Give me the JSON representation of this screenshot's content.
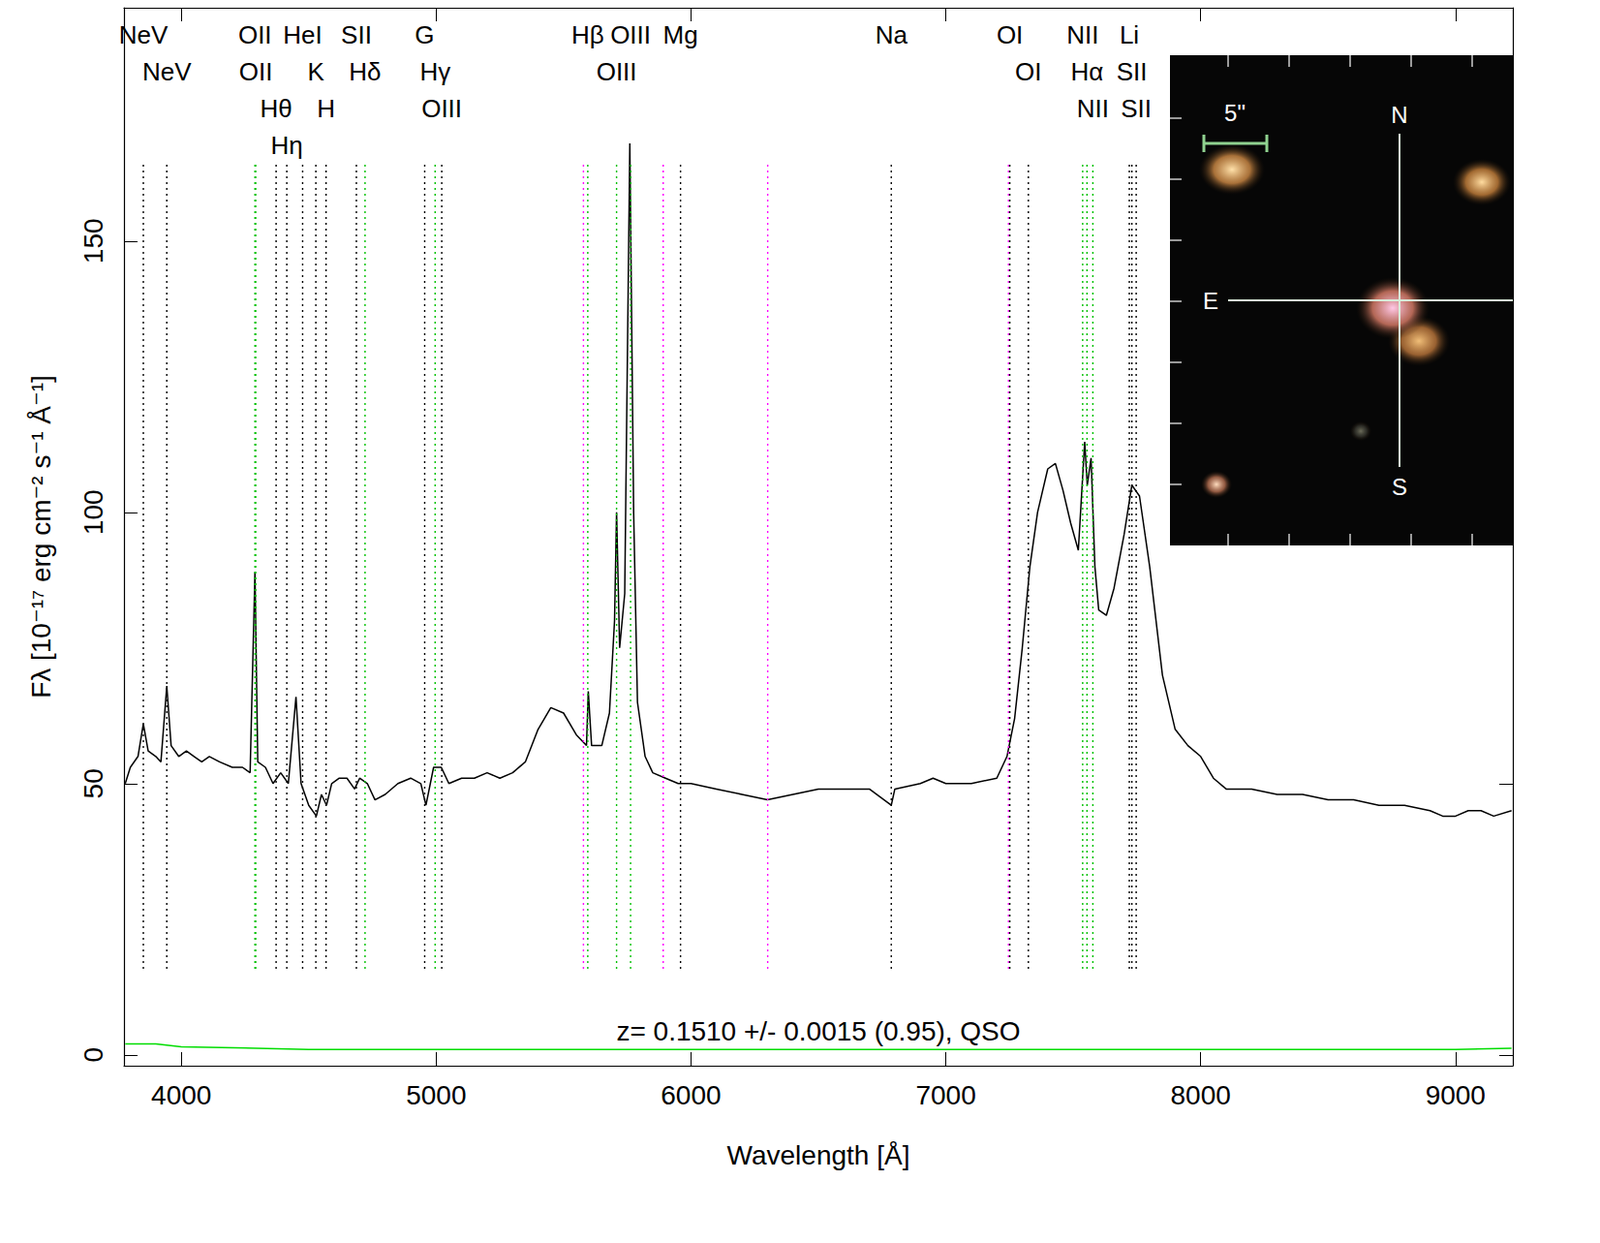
{
  "chart_data": {
    "type": "line",
    "x_label": "Wavelength [Å]",
    "y_label": "Fλ [10⁻¹⁷ erg cm⁻² s⁻¹ Å⁻¹]",
    "xlim": [
      3775,
      9225
    ],
    "xticks": [
      4000,
      5000,
      6000,
      7000,
      8000,
      9000
    ],
    "ylim": [
      -2,
      193
    ],
    "yticks": [
      0,
      50,
      100,
      150
    ],
    "grid": false,
    "series": [
      {
        "color": "#000000",
        "x": [
          3780,
          3800,
          3830,
          3851,
          3870,
          3900,
          3920,
          3943,
          3960,
          3990,
          4020,
          4050,
          4080,
          4110,
          4150,
          4200,
          4240,
          4270,
          4289,
          4300,
          4330,
          4360,
          4390,
          4420,
          4450,
          4470,
          4500,
          4530,
          4550,
          4570,
          4590,
          4620,
          4650,
          4680,
          4700,
          4730,
          4760,
          4800,
          4850,
          4900,
          4940,
          4960,
          4990,
          5020,
          5050,
          5100,
          5150,
          5200,
          5250,
          5300,
          5350,
          5400,
          5450,
          5500,
          5550,
          5590,
          5597,
          5610,
          5650,
          5680,
          5700,
          5708,
          5720,
          5740,
          5760,
          5775,
          5790,
          5820,
          5850,
          5900,
          5950,
          6000,
          6100,
          6200,
          6300,
          6400,
          6500,
          6600,
          6700,
          6786,
          6800,
          6900,
          6950,
          7000,
          7100,
          7200,
          7240,
          7270,
          7300,
          7330,
          7360,
          7400,
          7430,
          7460,
          7490,
          7520,
          7545,
          7555,
          7570,
          7585,
          7600,
          7630,
          7660,
          7700,
          7730,
          7760,
          7800,
          7850,
          7900,
          7950,
          8000,
          8050,
          8100,
          8200,
          8300,
          8400,
          8500,
          8600,
          8700,
          8800,
          8900,
          8950,
          9000,
          9050,
          9100,
          9150,
          9220
        ],
        "values": [
          50,
          53,
          55,
          61,
          56,
          55,
          54,
          68,
          57,
          55,
          56,
          55,
          54,
          55,
          54,
          53,
          53,
          52,
          89,
          54,
          53,
          50,
          52,
          50,
          66,
          50,
          46,
          44,
          48,
          46,
          50,
          51,
          51,
          49,
          51,
          50,
          47,
          48,
          50,
          51,
          50,
          46,
          53,
          53,
          50,
          51,
          51,
          52,
          51,
          52,
          54,
          60,
          64,
          63,
          59,
          57,
          67,
          57,
          57,
          63,
          80,
          100,
          75,
          85,
          168,
          100,
          65,
          55,
          52,
          51,
          50,
          50,
          49,
          48,
          47,
          48,
          49,
          49,
          49,
          46,
          49,
          50,
          51,
          50,
          50,
          51,
          55,
          62,
          75,
          90,
          100,
          108,
          109,
          104,
          98,
          93,
          113,
          105,
          110,
          90,
          82,
          81,
          86,
          96,
          105,
          103,
          90,
          70,
          60,
          57,
          55,
          51,
          49,
          49,
          48,
          48,
          47,
          47,
          46,
          46,
          45,
          44,
          44,
          45,
          45,
          44,
          45
        ]
      },
      {
        "color": "#00dd00",
        "x": [
          3780,
          3900,
          4000,
          4500,
          5000,
          6000,
          7000,
          8000,
          9000,
          9220
        ],
        "values": [
          2,
          2,
          1.5,
          1,
          1,
          1,
          1,
          1,
          1,
          1.2
        ]
      }
    ],
    "lines": [
      {
        "label": "NeV",
        "x": 3851,
        "color": "#000000"
      },
      {
        "label": "NeV",
        "x": 3943,
        "color": "#000000"
      },
      {
        "label": "OII",
        "x": 4289,
        "color": "#00c000"
      },
      {
        "label": "OII",
        "x": 4292,
        "color": "#00c000"
      },
      {
        "label": "Hθ",
        "x": 4372,
        "color": "#000000"
      },
      {
        "label": "Hη",
        "x": 4414,
        "color": "#000000"
      },
      {
        "label": "HeI",
        "x": 4476,
        "color": "#000000"
      },
      {
        "label": "K",
        "x": 4528,
        "color": "#000000"
      },
      {
        "label": "H",
        "x": 4568,
        "color": "#000000"
      },
      {
        "label": "SII",
        "x": 4687,
        "color": "#000000"
      },
      {
        "label": "Hδ",
        "x": 4721,
        "color": "#00c000"
      },
      {
        "label": "G",
        "x": 4955,
        "color": "#000000"
      },
      {
        "label": "Hγ",
        "x": 4996,
        "color": "#00c000"
      },
      {
        "label": "OIII",
        "x": 5022,
        "color": "#000000"
      },
      {
        "label": "Hβ",
        "x": 5595,
        "color": "#00c000"
      },
      {
        "label": "OIII",
        "x": 5708,
        "color": "#00c000"
      },
      {
        "label": "OIII",
        "x": 5763,
        "color": "#00c000"
      },
      {
        "label": "Mg",
        "x": 5959,
        "color": "#000000"
      },
      {
        "label": "Na",
        "x": 6786,
        "color": "#000000"
      },
      {
        "label": "OI",
        "x": 7251,
        "color": "#000000"
      },
      {
        "label": "OI",
        "x": 7324,
        "color": "#000000"
      },
      {
        "label": "NII",
        "x": 7537,
        "color": "#00c000"
      },
      {
        "label": "Hα",
        "x": 7554,
        "color": "#00c000"
      },
      {
        "label": "NII",
        "x": 7577,
        "color": "#00c000"
      },
      {
        "label": "Li",
        "x": 7720,
        "color": "#000000"
      },
      {
        "label": "SII",
        "x": 7730,
        "color": "#000000"
      },
      {
        "label": "SII",
        "x": 7747,
        "color": "#000000"
      }
    ],
    "sky_lines": {
      "color": "#ff00ff",
      "x": [
        5578,
        5891,
        6301,
        7246
      ]
    },
    "annotation": "z= 0.1510 +/- 0.0015 (0.95), QSO",
    "inset": {
      "scale_label": "5\"",
      "compass": [
        "N",
        "E",
        "S"
      ]
    }
  }
}
